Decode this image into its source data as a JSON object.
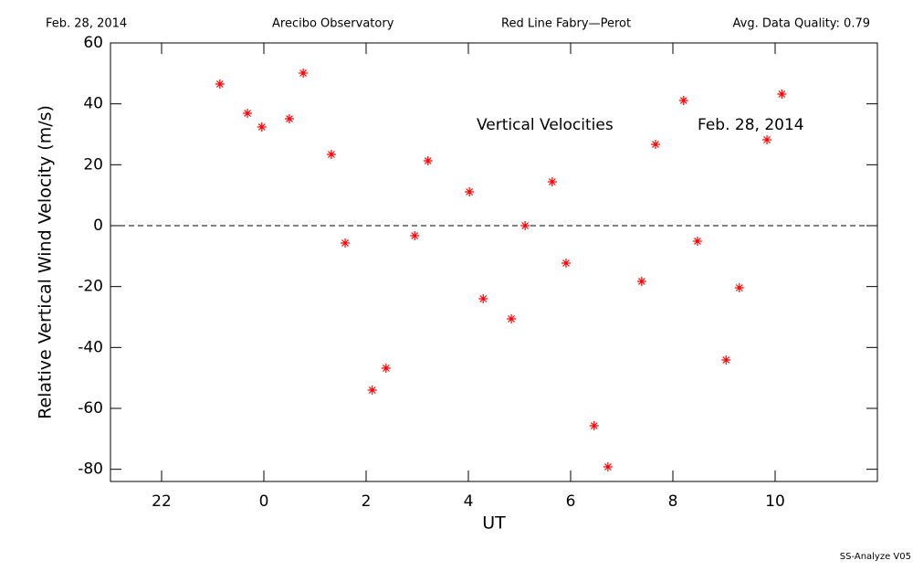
{
  "chart_data": {
    "type": "scatter",
    "header": [
      "Feb. 28, 2014",
      "Arecibo Observatory",
      "Red Line Fabry—Perot",
      "Avg. Data Quality: 0.79"
    ],
    "annotations": [
      "Vertical Velocities",
      "Feb. 28, 2014"
    ],
    "footer": "SS-Analyze V05",
    "x_label": "UT",
    "y_label": "Relative Vertical Wind Velocity (m/s)",
    "xlim": [
      -3,
      12
    ],
    "ylim": [
      -84,
      60
    ],
    "xticks": [
      {
        "value": -2,
        "label": "22"
      },
      0,
      2,
      4,
      6,
      8,
      10
    ],
    "yticks": [
      -80,
      -60,
      -40,
      -20,
      0,
      20,
      40,
      60
    ],
    "zero_line": true,
    "color": "#ff0000",
    "x": [
      -0.86,
      -0.32,
      -0.04,
      0.5,
      0.77,
      1.32,
      1.59,
      2.12,
      2.39,
      2.95,
      3.21,
      4.02,
      4.29,
      4.84,
      5.11,
      5.64,
      5.91,
      6.46,
      6.73,
      7.39,
      7.66,
      8.21,
      8.48,
      9.04,
      9.3,
      9.84,
      10.13
    ],
    "values": [
      46.5,
      36.9,
      32.4,
      35.1,
      50.1,
      23.4,
      -5.7,
      -54,
      -46.8,
      -3.3,
      21.3,
      11.1,
      -24,
      -30.6,
      0,
      14.4,
      -12.3,
      -65.7,
      -79.2,
      -18.3,
      26.7,
      41.1,
      -5.1,
      -44.1,
      -20.4,
      28.2,
      43.2
    ]
  }
}
